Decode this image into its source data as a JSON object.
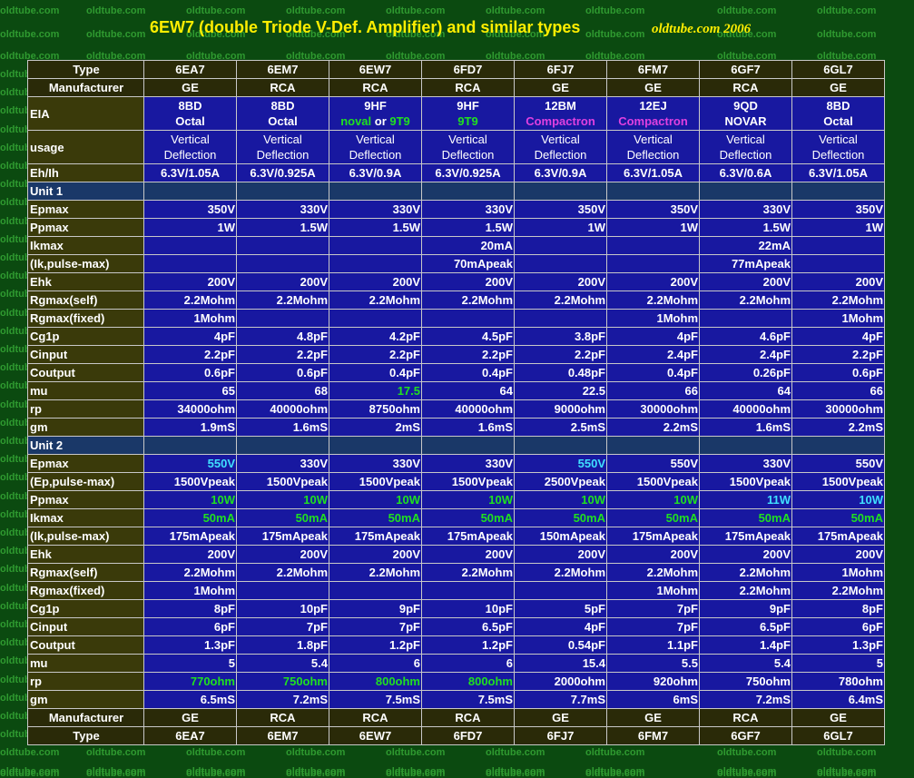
{
  "watermark": "oldtube.com",
  "title": "6EW7 (double Triode V-Def. Amplifier) and similar types",
  "site": "oldtube.com 2006",
  "colors": {
    "cyan": "#40e0ff",
    "green": "#20e020",
    "magenta": "#e040e0",
    "cell": "#1818a0",
    "label": "#3a3a0a",
    "unit": "#1a3868"
  },
  "table": {
    "header_rows": [
      {
        "label": "Type",
        "values": [
          "6EA7",
          "6EM7",
          "6EW7",
          "6FD7",
          "6FJ7",
          "6FM7",
          "6GF7",
          "6GL7"
        ]
      },
      {
        "label": "Manufacturer",
        "values": [
          "GE",
          "RCA",
          "RCA",
          "RCA",
          "GE",
          "GE",
          "RCA",
          "GE"
        ]
      }
    ],
    "eia": {
      "label": "EIA",
      "lines": [
        [
          {
            "t": "8BD"
          }
        ],
        [
          {
            "t": "Octal"
          }
        ]
      ],
      "cells": [
        [
          [
            {
              "t": "8BD"
            }
          ],
          [
            {
              "t": "Octal"
            }
          ]
        ],
        [
          [
            {
              "t": "8BD"
            }
          ],
          [
            {
              "t": "Octal"
            }
          ]
        ],
        [
          [
            {
              "t": "9HF"
            }
          ],
          [
            {
              "t": "noval",
              "c": "green"
            },
            {
              "t": " or "
            },
            {
              "t": "9T9",
              "c": "green"
            }
          ]
        ],
        [
          [
            {
              "t": "9HF"
            }
          ],
          [
            {
              "t": "9T9",
              "c": "green"
            }
          ]
        ],
        [
          [
            {
              "t": "12BM"
            }
          ],
          [
            {
              "t": "Compactron",
              "c": "mag"
            }
          ]
        ],
        [
          [
            {
              "t": "12EJ"
            }
          ],
          [
            {
              "t": "Compactron",
              "c": "mag"
            }
          ]
        ],
        [
          [
            {
              "t": "9QD"
            }
          ],
          [
            {
              "t": "NOVAR"
            }
          ]
        ],
        [
          [
            {
              "t": "8BD"
            }
          ],
          [
            {
              "t": "Octal"
            }
          ]
        ]
      ]
    },
    "usage": {
      "label": "usage",
      "line1": "Vertical",
      "line2": "Deflection",
      "count": 8
    },
    "rows_top": [
      {
        "label": "Eh/Ih",
        "values": [
          "6.3V/1.05A",
          "6.3V/0.925A",
          "6.3V/0.9A",
          "6.3V/0.925A",
          "6.3V/0.9A",
          "6.3V/1.05A",
          "6.3V/0.6A",
          "6.3V/1.05A"
        ],
        "center": true
      }
    ],
    "unit1": {
      "label": "Unit 1",
      "rows": [
        {
          "label": "Epmax",
          "values": [
            "350V",
            "330V",
            "330V",
            "330V",
            "350V",
            "350V",
            "330V",
            "350V"
          ]
        },
        {
          "label": "Ppmax",
          "values": [
            "1W",
            "1.5W",
            "1.5W",
            "1.5W",
            "1W",
            "1W",
            "1.5W",
            "1W"
          ]
        },
        {
          "label": "Ikmax",
          "values": [
            "",
            "",
            "",
            "20mA",
            "",
            "",
            "22mA",
            ""
          ]
        },
        {
          "label": "(Ik,pulse-max)",
          "values": [
            "",
            "",
            "",
            "70mApeak",
            "",
            "",
            "77mApeak",
            ""
          ]
        },
        {
          "label": "Ehk",
          "values": [
            "200V",
            "200V",
            "200V",
            "200V",
            "200V",
            "200V",
            "200V",
            "200V"
          ]
        },
        {
          "label": "Rgmax(self)",
          "values": [
            "2.2Mohm",
            "2.2Mohm",
            "2.2Mohm",
            "2.2Mohm",
            "2.2Mohm",
            "2.2Mohm",
            "2.2Mohm",
            "2.2Mohm"
          ]
        },
        {
          "label": "Rgmax(fixed)",
          "values": [
            "1Mohm",
            "",
            "",
            "",
            "",
            "1Mohm",
            "",
            "1Mohm"
          ]
        },
        {
          "label": "Cg1p",
          "values": [
            "4pF",
            "4.8pF",
            "4.2pF",
            "4.5pF",
            "3.8pF",
            "4pF",
            "4.6pF",
            "4pF"
          ]
        },
        {
          "label": "Cinput",
          "values": [
            "2.2pF",
            "2.2pF",
            "2.2pF",
            "2.2pF",
            "2.2pF",
            "2.4pF",
            "2.4pF",
            "2.2pF"
          ]
        },
        {
          "label": "Coutput",
          "values": [
            "0.6pF",
            "0.6pF",
            "0.4pF",
            "0.4pF",
            "0.48pF",
            "0.4pF",
            "0.26pF",
            "0.6pF"
          ]
        },
        {
          "label": "mu",
          "values": [
            "65",
            "68",
            "17.5",
            "64",
            "22.5",
            "66",
            "64",
            "66"
          ],
          "colors": [
            "",
            "",
            "green",
            "",
            "",
            "",
            "",
            ""
          ]
        },
        {
          "label": "rp",
          "values": [
            "34000ohm",
            "40000ohm",
            "8750ohm",
            "40000ohm",
            "9000ohm",
            "30000ohm",
            "40000ohm",
            "30000ohm"
          ]
        },
        {
          "label": "gm",
          "values": [
            "1.9mS",
            "1.6mS",
            "2mS",
            "1.6mS",
            "2.5mS",
            "2.2mS",
            "1.6mS",
            "2.2mS"
          ]
        }
      ]
    },
    "unit2": {
      "label": "Unit 2",
      "rows": [
        {
          "label": "Epmax",
          "values": [
            "550V",
            "330V",
            "330V",
            "330V",
            "550V",
            "550V",
            "330V",
            "550V"
          ],
          "colors": [
            "cyan",
            "",
            "",
            "",
            "cyan",
            "",
            "",
            ""
          ]
        },
        {
          "label": "(Ep,pulse-max)",
          "values": [
            "1500Vpeak",
            "1500Vpeak",
            "1500Vpeak",
            "1500Vpeak",
            "2500Vpeak",
            "1500Vpeak",
            "1500Vpeak",
            "1500Vpeak"
          ]
        },
        {
          "label": "Ppmax",
          "values": [
            "10W",
            "10W",
            "10W",
            "10W",
            "10W",
            "10W",
            "11W",
            "10W"
          ],
          "colors": [
            "green",
            "green",
            "green",
            "green",
            "green",
            "green",
            "cyan",
            "cyan"
          ]
        },
        {
          "label": "Ikmax",
          "values": [
            "50mA",
            "50mA",
            "50mA",
            "50mA",
            "50mA",
            "50mA",
            "50mA",
            "50mA"
          ],
          "colors": [
            "green",
            "green",
            "green",
            "green",
            "green",
            "green",
            "green",
            "green"
          ]
        },
        {
          "label": "(Ik,pulse-max)",
          "values": [
            "175mApeak",
            "175mApeak",
            "175mApeak",
            "175mApeak",
            "150mApeak",
            "175mApeak",
            "175mApeak",
            "175mApeak"
          ]
        },
        {
          "label": "Ehk",
          "values": [
            "200V",
            "200V",
            "200V",
            "200V",
            "200V",
            "200V",
            "200V",
            "200V"
          ]
        },
        {
          "label": "Rgmax(self)",
          "values": [
            "2.2Mohm",
            "2.2Mohm",
            "2.2Mohm",
            "2.2Mohm",
            "2.2Mohm",
            "2.2Mohm",
            "2.2Mohm",
            "1Mohm"
          ]
        },
        {
          "label": "Rgmax(fixed)",
          "values": [
            "1Mohm",
            "",
            "",
            "",
            "",
            "1Mohm",
            "2.2Mohm",
            "2.2Mohm"
          ]
        },
        {
          "label": "Cg1p",
          "values": [
            "8pF",
            "10pF",
            "9pF",
            "10pF",
            "5pF",
            "7pF",
            "9pF",
            "8pF"
          ]
        },
        {
          "label": "Cinput",
          "values": [
            "6pF",
            "7pF",
            "7pF",
            "6.5pF",
            "4pF",
            "7pF",
            "6.5pF",
            "6pF"
          ]
        },
        {
          "label": "Coutput",
          "values": [
            "1.3pF",
            "1.8pF",
            "1.2pF",
            "1.2pF",
            "0.54pF",
            "1.1pF",
            "1.4pF",
            "1.3pF"
          ]
        },
        {
          "label": "mu",
          "values": [
            "5",
            "5.4",
            "6",
            "6",
            "15.4",
            "5.5",
            "5.4",
            "5"
          ]
        },
        {
          "label": "rp",
          "values": [
            "770ohm",
            "750ohm",
            "800ohm",
            "800ohm",
            "2000ohm",
            "920ohm",
            "750ohm",
            "780ohm"
          ],
          "colors": [
            "green",
            "green",
            "green",
            "green",
            "",
            "",
            "",
            ""
          ]
        },
        {
          "label": "gm",
          "values": [
            "6.5mS",
            "7.2mS",
            "7.5mS",
            "7.5mS",
            "7.7mS",
            "6mS",
            "7.2mS",
            "6.4mS"
          ]
        }
      ]
    },
    "footer_rows": [
      {
        "label": "Manufacturer",
        "values": [
          "GE",
          "RCA",
          "RCA",
          "RCA",
          "GE",
          "GE",
          "RCA",
          "GE"
        ]
      },
      {
        "label": "Type",
        "values": [
          "6EA7",
          "6EM7",
          "6EW7",
          "6FD7",
          "6FJ7",
          "6FM7",
          "6GF7",
          "6GL7"
        ]
      }
    ]
  }
}
